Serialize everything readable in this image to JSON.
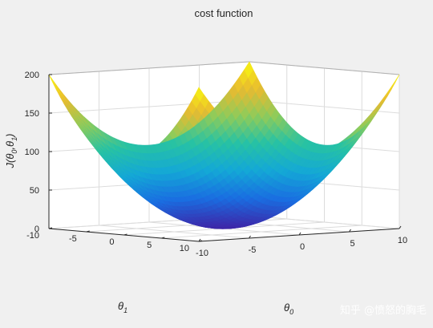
{
  "chart_data": {
    "type": "surface3d",
    "title": "cost function",
    "zlabel": "J(θ0,θ1)",
    "xlabel": "θ0",
    "ylabel": "θ1",
    "x_range": [
      -10,
      10
    ],
    "y_range": [
      -10,
      10
    ],
    "z_range": [
      0,
      200
    ],
    "x_ticks": [
      "-10",
      "-5",
      "0",
      "5",
      "10"
    ],
    "y_ticks": [
      "-10",
      "-5",
      "0",
      "5",
      "10"
    ],
    "z_ticks": [
      "0",
      "50",
      "100",
      "150",
      "200"
    ],
    "function": "J = θ0^2 + θ1^2",
    "grid": true,
    "colormap": "parula",
    "colormap_colors": [
      "#3e26a8",
      "#1a6ee1",
      "#14a8d6",
      "#27c2a4",
      "#8fcb5a",
      "#e9ba30",
      "#f9fb0e"
    ]
  },
  "watermark": "知乎 @愤怒的胸毛"
}
